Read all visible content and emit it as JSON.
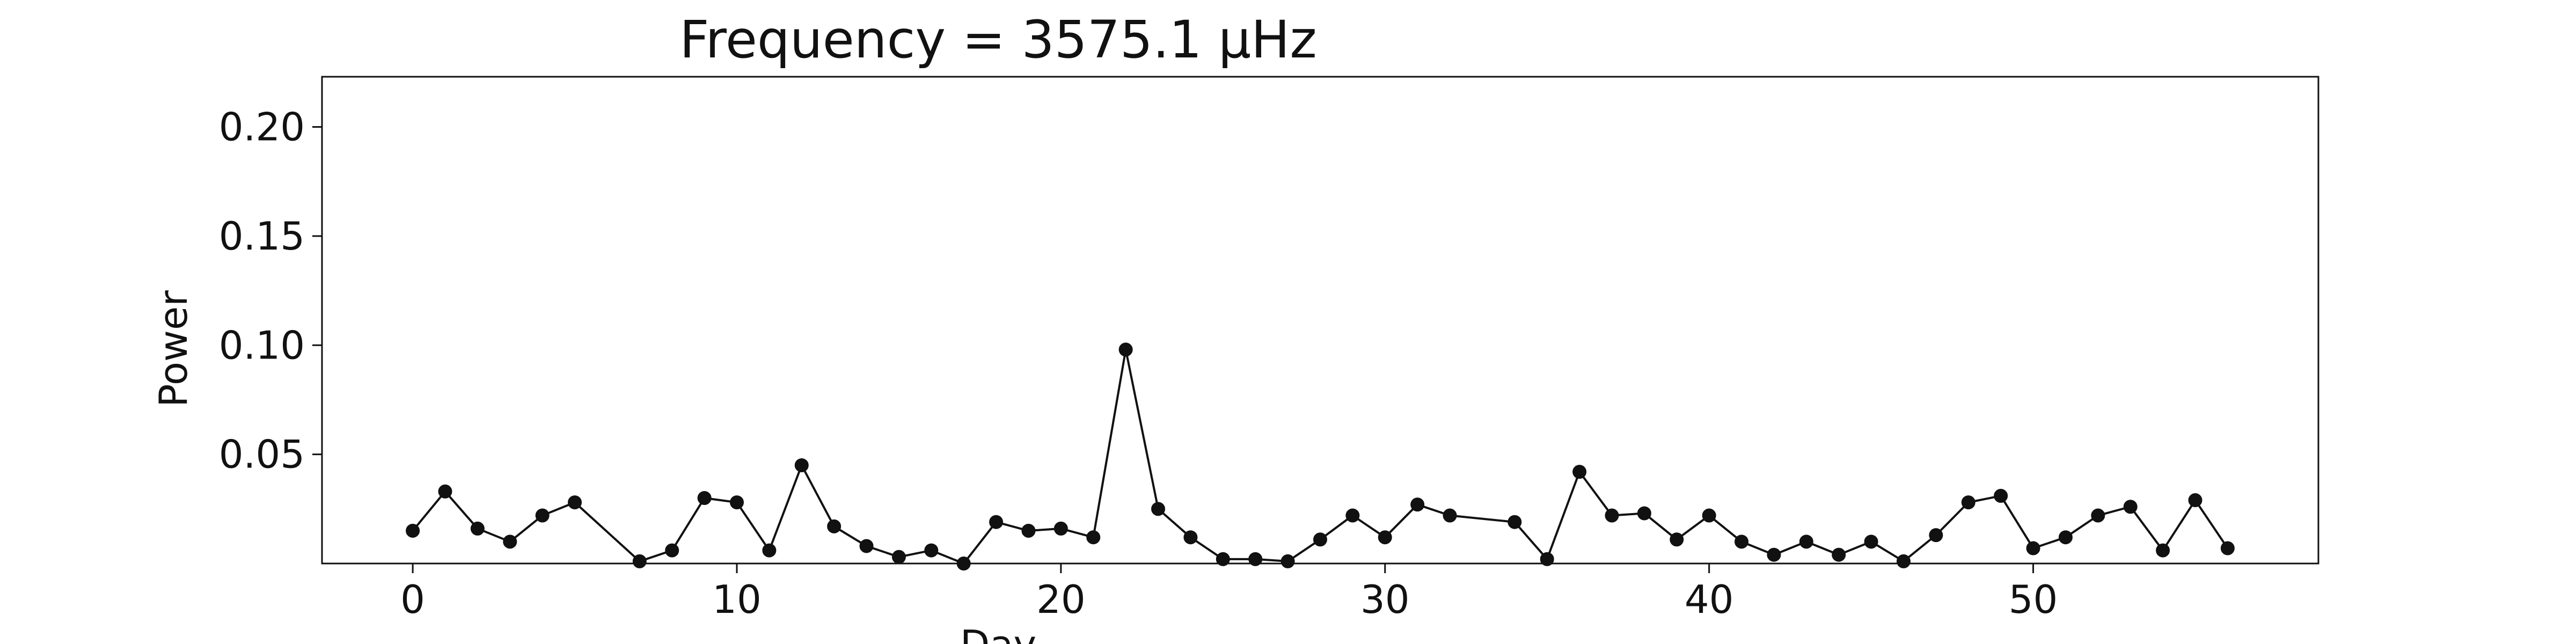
{
  "chart_data": {
    "type": "line",
    "title": "Frequency = 3575.1 μHz",
    "xlabel": "Day",
    "ylabel": "Power",
    "xlim": [
      -2.8,
      58.8
    ],
    "ylim": [
      0,
      0.223
    ],
    "xticks": [
      0,
      10,
      20,
      30,
      40,
      50
    ],
    "yticks": [
      0.05,
      0.1,
      0.15,
      0.2
    ],
    "ytick_labels": [
      "0.05",
      "0.10",
      "0.15",
      "0.20"
    ],
    "grid": false,
    "legend": "none",
    "series": [
      {
        "color": "#111111",
        "marker": "circle",
        "points": [
          [
            0,
            0.015
          ],
          [
            1,
            0.033
          ],
          [
            2,
            0.016
          ],
          [
            3,
            0.01
          ],
          [
            4,
            0.022
          ],
          [
            5,
            0.028
          ],
          [
            7,
            0.001
          ],
          [
            8,
            0.006
          ],
          [
            9,
            0.03
          ],
          [
            10,
            0.028
          ],
          [
            11,
            0.006
          ],
          [
            12,
            0.045
          ],
          [
            13,
            0.017
          ],
          [
            14,
            0.008
          ],
          [
            15,
            0.003
          ],
          [
            16,
            0.006
          ],
          [
            17,
            0.0
          ],
          [
            18,
            0.019
          ],
          [
            19,
            0.015
          ],
          [
            20,
            0.016
          ],
          [
            21,
            0.012
          ],
          [
            22,
            0.098
          ],
          [
            23,
            0.025
          ],
          [
            24,
            0.012
          ],
          [
            25,
            0.002
          ],
          [
            26,
            0.002
          ],
          [
            27,
            0.001
          ],
          [
            28,
            0.011
          ],
          [
            29,
            0.022
          ],
          [
            30,
            0.012
          ],
          [
            31,
            0.027
          ],
          [
            32,
            0.022
          ],
          [
            34,
            0.019
          ],
          [
            35,
            0.002
          ],
          [
            36,
            0.042
          ],
          [
            37,
            0.022
          ],
          [
            38,
            0.023
          ],
          [
            39,
            0.011
          ],
          [
            40,
            0.022
          ],
          [
            41,
            0.01
          ],
          [
            42,
            0.004
          ],
          [
            43,
            0.01
          ],
          [
            44,
            0.004
          ],
          [
            45,
            0.01
          ],
          [
            46,
            0.001
          ],
          [
            47,
            0.013
          ],
          [
            48,
            0.028
          ],
          [
            49,
            0.031
          ],
          [
            50,
            0.007
          ],
          [
            51,
            0.012
          ],
          [
            52,
            0.022
          ],
          [
            53,
            0.026
          ],
          [
            54,
            0.006
          ],
          [
            55,
            0.029
          ],
          [
            56,
            0.007
          ]
        ]
      }
    ]
  }
}
